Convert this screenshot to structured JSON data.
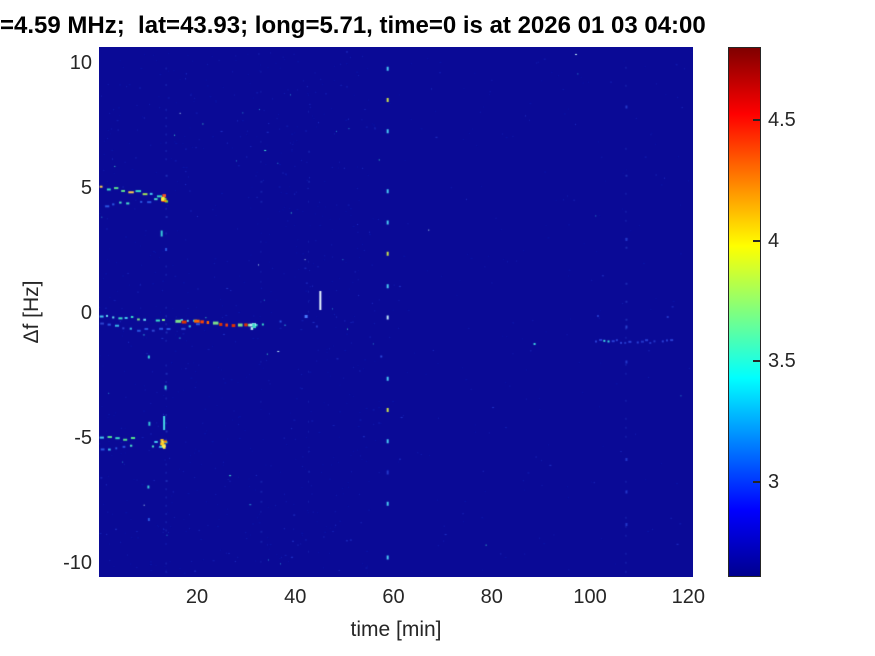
{
  "figure": {
    "title": "=4.59 MHz;  lat=43.93; long=5.71, time=0 is at 2026 01 03 04:00",
    "background": "#ffffff",
    "text_color": "#262626"
  },
  "chart_data": {
    "type": "heatmap",
    "title": "=4.59 MHz;  lat=43.93; long=5.71, time=0 is at 2026 01 03 04:00",
    "xlabel": "time [min]",
    "ylabel": "Δf [Hz]",
    "xlim": [
      0.05,
      120.95
    ],
    "ylim": [
      -10.56,
      10.64
    ],
    "x_ticks": [
      20,
      40,
      60,
      80,
      100,
      120
    ],
    "y_ticks": [
      10,
      5,
      0,
      -5,
      -10
    ],
    "grid": false,
    "legend": "colorbar-right",
    "background_value_color": "#0a0a96",
    "colorbar": {
      "vmin": 2.605,
      "vmax": 4.805,
      "ticks": [
        3,
        3.5,
        4,
        4.5
      ],
      "colormap": "jet",
      "stops": [
        [
          "0%",
          "#00008f"
        ],
        [
          "12.5%",
          "#0000ff"
        ],
        [
          "37.5%",
          "#00ffff"
        ],
        [
          "62.5%",
          "#ffff00"
        ],
        [
          "87.5%",
          "#ff0000"
        ],
        [
          "100%",
          "#800000"
        ]
      ]
    },
    "features": [
      {
        "type": "speckle",
        "count": 1050,
        "seed": 11,
        "colors": [
          [
            "#0a15a6",
            10
          ],
          [
            "#1420b2",
            5
          ],
          [
            "#2133c6",
            2
          ],
          [
            "#2c8ed0",
            0.35
          ],
          [
            "#46e0d0",
            0.2
          ],
          [
            "#c0ecf8",
            0.1
          ]
        ]
      },
      {
        "type": "column",
        "t": 13.6,
        "seed": 21,
        "color": "#1d2cb4",
        "skip": 0.45,
        "step_f": 0.33
      },
      {
        "type": "column",
        "t": 32.9,
        "seed": 22,
        "color": "#151fa9",
        "skip": 0.62,
        "step_f": 0.4
      },
      {
        "type": "column",
        "t": 42.6,
        "seed": 23,
        "color": "#151fa9",
        "skip": 0.66,
        "step_f": 0.4
      },
      {
        "type": "column",
        "t": 107.2,
        "seed": 24,
        "color": "#1c2ab2",
        "skip": 0.55,
        "step_f": 0.36
      },
      {
        "type": "trace",
        "seed": 31,
        "t0": 0.2,
        "f0": 5.03,
        "t1": 13.3,
        "f1": 4.68,
        "dash": 4,
        "gap": 3,
        "thick": 2,
        "jf": 0.06,
        "colors": [
          "#3adcc8",
          "#5ce08e",
          "#a2e455",
          "#46c8f0",
          "#ffd24a",
          "#38b0e8"
        ]
      },
      {
        "type": "trace",
        "seed": 32,
        "t0": 1.3,
        "f0": 4.32,
        "t1": 12.7,
        "f1": 4.55,
        "dash": 3,
        "gap": 4,
        "thick": 2,
        "jf": 0.06,
        "colors": [
          "#2a55e0",
          "#38b8e8",
          "#4adcc8",
          "#2336c8"
        ]
      },
      {
        "type": "cluster",
        "seed": 33,
        "t": 13.1,
        "f": 4.62,
        "dt": 0.9,
        "df": 0.25,
        "n": 11,
        "colors": [
          "#ff3b00",
          "#ff9900",
          "#66dd44",
          "#ffee33",
          "#ff5522"
        ]
      },
      {
        "type": "trace",
        "seed": 41,
        "t0": 0.2,
        "f0": -0.14,
        "t1": 19.2,
        "f1": -0.34,
        "dash": 3,
        "gap": 3,
        "thick": 2,
        "jf": 0.05,
        "colors": [
          "#3adcc8",
          "#62d9f0",
          "#7de08a",
          "#46c8f0"
        ]
      },
      {
        "type": "trace",
        "seed": 42,
        "t0": 0.3,
        "f0": -0.42,
        "fm": -0.95,
        "t1": 19.8,
        "f1": -0.45,
        "dash": 3,
        "gap": 4,
        "thick": 2,
        "jf": 0.06,
        "colors": [
          "#2a55e0",
          "#38b8e8",
          "#2e46d0"
        ]
      },
      {
        "type": "trace",
        "seed": 43,
        "t0": 15.6,
        "f0": -0.3,
        "t1": 29.6,
        "f1": -0.5,
        "dash": 4,
        "gap": 2,
        "thick": 3,
        "jf": 0.05,
        "colors": [
          "#ff4400",
          "#ff8800",
          "#ffcc22",
          "#e03300",
          "#7de08a",
          "#ff6600"
        ]
      },
      {
        "type": "cluster",
        "seed": 44,
        "t": 30.9,
        "f": -0.46,
        "dt": 0.8,
        "df": 0.12,
        "n": 7,
        "colors": [
          "#3adcc8",
          "#7de08a",
          "#bfeaf8"
        ]
      },
      {
        "type": "dots",
        "list": [
          [
            33.2,
            -0.42,
            "#3adcc8",
            2,
            2
          ],
          [
            36.8,
            -0.3,
            "#2a55e0",
            2,
            2
          ],
          [
            41.9,
            -0.08,
            "#4a7bff",
            3,
            3
          ],
          [
            44.2,
            -0.5,
            "#2336c8",
            2,
            2
          ],
          [
            12.6,
            3.3,
            "#38c8d8",
            2,
            6
          ],
          [
            13.5,
            2.6,
            "#2a55e0",
            2,
            3
          ],
          [
            13.4,
            -2.9,
            "#38c8d8",
            2,
            4
          ]
        ]
      },
      {
        "type": "trace",
        "seed": 51,
        "t0": 0.2,
        "f0": -4.97,
        "t1": 12.9,
        "f1": -5.14,
        "dash": 4,
        "gap": 3,
        "thick": 2,
        "jf": 0.06,
        "colors": [
          "#3adcc8",
          "#ffd24a",
          "#ff9922",
          "#56e08e",
          "#46c8f0"
        ]
      },
      {
        "type": "trace",
        "seed": 52,
        "t0": 0.4,
        "f0": -5.42,
        "t1": 12.3,
        "f1": -5.3,
        "dash": 3,
        "gap": 4,
        "thick": 2,
        "jf": 0.06,
        "colors": [
          "#38b8e8",
          "#ffe04a",
          "#4adcc8",
          "#2a55e0"
        ]
      },
      {
        "type": "cluster",
        "seed": 53,
        "t": 12.9,
        "f": -5.2,
        "dt": 0.7,
        "df": 0.18,
        "n": 8,
        "colors": [
          "#ffcc22",
          "#ff8800",
          "#ffee55",
          "#66dd44"
        ]
      },
      {
        "type": "vdash",
        "t": 13.1,
        "f0": -4.12,
        "f1": -4.68,
        "color": "#45d8e8",
        "w": 2
      },
      {
        "type": "vdash",
        "t": 44.9,
        "f0": 0.12,
        "f1": 0.88,
        "color": "#e8f7ff",
        "w": 2
      },
      {
        "type": "vdots",
        "t": 58.6,
        "w": 2,
        "h": 4,
        "dots": [
          [
            9.85,
            "#49c8f2"
          ],
          [
            8.6,
            "#cde24c"
          ],
          [
            7.35,
            "#49c8f2"
          ],
          [
            4.95,
            "#49c8f2"
          ],
          [
            3.7,
            "#49c8f2"
          ],
          [
            2.45,
            "#cde24c"
          ],
          [
            1.15,
            "#49c8f2"
          ],
          [
            -0.1,
            "#bfeaf8"
          ],
          [
            -2.55,
            "#49c8f2"
          ],
          [
            -3.8,
            "#cde24c"
          ],
          [
            -5.05,
            "#49c8f2"
          ],
          [
            -6.3,
            "#2336c8"
          ],
          [
            -7.55,
            "#49c8f2"
          ],
          [
            -9.7,
            "#49c8f2"
          ]
        ]
      },
      {
        "type": "vdots",
        "t": 107.2,
        "w": 2,
        "h": 3,
        "dots": [
          [
            8.3,
            "#2336c8"
          ],
          [
            3.0,
            "#2336c8"
          ],
          [
            -0.5,
            "#2841cc"
          ],
          [
            -1.9,
            "#2336c8"
          ],
          [
            -5.8,
            "#2336c8"
          ],
          [
            -7.1,
            "#2336c8"
          ],
          [
            -8.4,
            "#2336c8"
          ]
        ]
      },
      {
        "type": "hdots",
        "seed": 61,
        "t0": 101,
        "t1": 116.6,
        "f": -1.1,
        "step": 0.85,
        "jf": 0.07,
        "colors": [
          "#2a3fd4",
          "#2a3fd4",
          "#3fd4e0",
          "#2336c8"
        ]
      },
      {
        "type": "dots",
        "list": [
          [
            57.3,
            -1.7,
            "#2a48d8",
            2,
            2
          ],
          [
            88.5,
            -1.2,
            "#3fd4e0",
            2,
            2
          ],
          [
            101.4,
            -0.08,
            "#2336c8",
            2,
            2
          ],
          [
            115.6,
            -0.12,
            "#2336c8",
            2,
            2
          ],
          [
            10.0,
            -1.7,
            "#38c8d8",
            2,
            3
          ],
          [
            10.1,
            -4.35,
            "#38c8d8",
            2,
            4
          ],
          [
            9.9,
            -6.9,
            "#38c8d8",
            2,
            3
          ],
          [
            10.0,
            -8.2,
            "#2a55e0",
            2,
            3
          ]
        ]
      }
    ]
  }
}
